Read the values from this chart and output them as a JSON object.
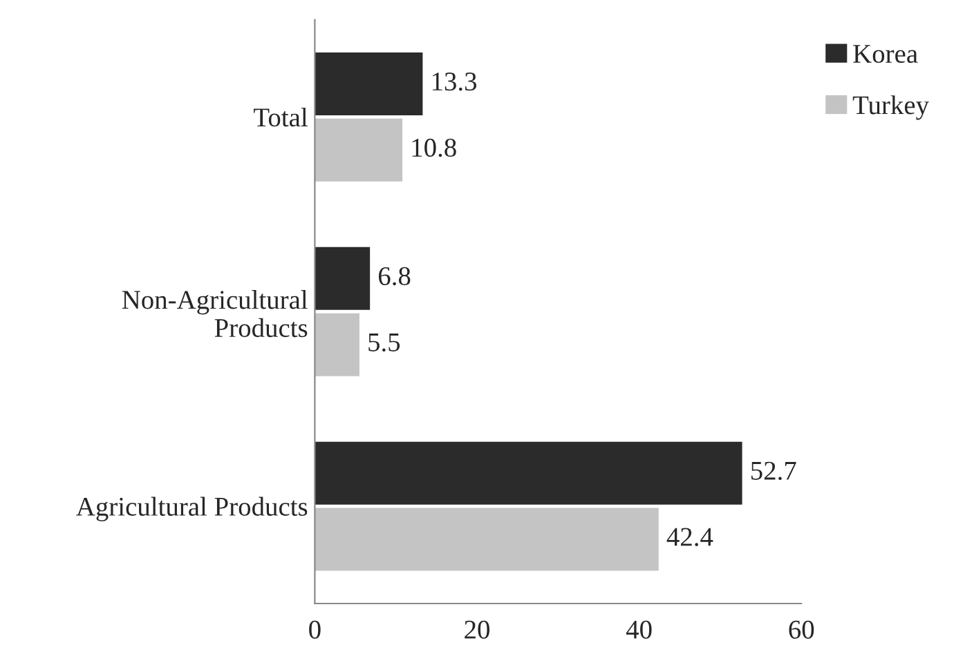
{
  "chart_data": {
    "type": "bar",
    "orientation": "horizontal",
    "categories": [
      "Total",
      "Non-Agricultural\nProducts",
      "Agricultural Products"
    ],
    "series": [
      {
        "name": "Korea",
        "color": "#2b2b2b",
        "values": [
          13.3,
          6.8,
          52.7
        ]
      },
      {
        "name": "Turkey",
        "color": "#c4c4c4",
        "values": [
          10.8,
          5.5,
          42.4
        ]
      }
    ],
    "xlim": [
      0,
      60
    ],
    "xticks": [
      0,
      20,
      40,
      60
    ],
    "data_labels": true,
    "legend": "top right",
    "grid": false
  }
}
